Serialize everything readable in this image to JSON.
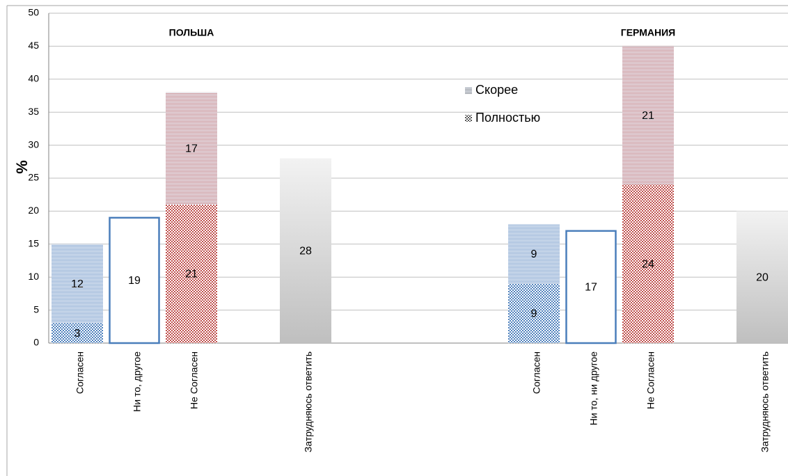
{
  "chart_data": {
    "type": "bar",
    "y_label": "%",
    "groups": [
      {
        "label": "ПОЛЬША",
        "at": 2
      },
      {
        "label": "ГЕРМАНИЯ",
        "at": 10
      }
    ],
    "categories": [
      "Согласен",
      "Ни то, другое",
      "Не Согласен",
      null,
      "Затрудняюсь ответить",
      null,
      null,
      null,
      "Согласен",
      "Ни то, ни другое",
      "Не Согласен",
      null,
      "Затрудняюсь ответить"
    ],
    "series": [
      {
        "name": "Полностью",
        "pattern": "checker",
        "values": [
          3,
          null,
          21,
          null,
          null,
          null,
          null,
          null,
          9,
          null,
          24,
          null,
          null
        ],
        "colors": [
          "#4f81bd",
          null,
          "#c0504d",
          null,
          null,
          null,
          null,
          null,
          "#4f81bd",
          null,
          "#c0504d",
          null,
          null
        ]
      },
      {
        "name": "Скорее",
        "pattern": "stripes",
        "values": [
          12,
          null,
          17,
          null,
          null,
          null,
          null,
          null,
          9,
          null,
          21,
          null,
          null
        ],
        "colors": [
          "#4f81bd",
          null,
          "#c0504d",
          null,
          null,
          null,
          null,
          null,
          "#4f81bd",
          null,
          "#c0504d",
          null,
          null
        ]
      }
    ],
    "neutral": {
      "color": "#4a7ebb",
      "values": [
        null,
        19,
        null,
        null,
        null,
        null,
        null,
        null,
        null,
        17,
        null,
        null,
        null
      ]
    },
    "unsure": {
      "colors": [
        "#f2f2f2",
        "#bfbfbf"
      ],
      "values": [
        null,
        null,
        null,
        null,
        28,
        null,
        null,
        null,
        null,
        null,
        null,
        null,
        20
      ]
    },
    "ylim": [
      0,
      50
    ],
    "yticks": [
      0,
      5,
      10,
      15,
      20,
      25,
      30,
      35,
      40,
      45,
      50
    ],
    "grid": true,
    "legend_color": "#595959"
  }
}
